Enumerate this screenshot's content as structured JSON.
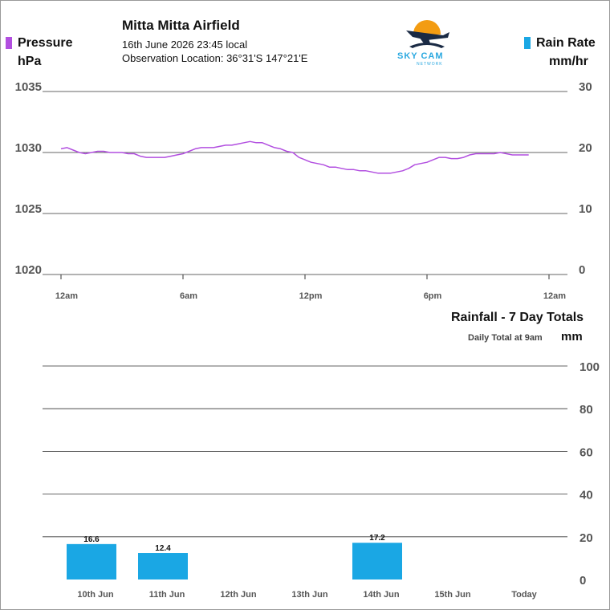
{
  "header": {
    "station": "Mitta Mitta Airfield",
    "datetime": "16th June 2026  23:45 local",
    "location": "Observation Location: 36°31'S 147°21'E"
  },
  "logo": {
    "text": "SKY CAM",
    "subtext": "NETWORK",
    "icon": "airplane-sunset-icon",
    "colors": {
      "sun": "#f39c12",
      "plane": "#1a2a44",
      "text": "#29a8e0"
    }
  },
  "legend": {
    "left": {
      "label": "Pressure",
      "unit": "hPa",
      "color": "#b24fe0"
    },
    "right": {
      "label": "Rain Rate",
      "unit": "mm/hr",
      "color": "#1aa7e4"
    }
  },
  "rainfall": {
    "title": "Rainfall - 7 Day Totals",
    "note": "Daily Total at 9am",
    "unit": "mm"
  },
  "chart_data": [
    {
      "type": "line",
      "title": "",
      "ylabel": "Pressure",
      "y_unit": "hPa",
      "y2label": "Rain Rate",
      "y2_unit": "mm/hr",
      "ylim": [
        1020,
        1035
      ],
      "yticks": [
        1035,
        1030,
        1025,
        1020
      ],
      "y2lim": [
        0,
        30
      ],
      "y2ticks": [
        30,
        20,
        10,
        0
      ],
      "xlim": [
        0,
        24
      ],
      "xticks": [
        {
          "x": 0,
          "label": "12am"
        },
        {
          "x": 6,
          "label": "6am"
        },
        {
          "x": 12,
          "label": "12pm"
        },
        {
          "x": 18,
          "label": "6pm"
        },
        {
          "x": 24,
          "label": "12am"
        }
      ],
      "grid": true,
      "series": [
        {
          "name": "Pressure",
          "color": "#b24fe0",
          "x": [
            0,
            0.3,
            0.6,
            0.9,
            1.2,
            1.5,
            1.8,
            2.1,
            2.4,
            2.7,
            3.0,
            3.3,
            3.6,
            3.9,
            4.2,
            4.5,
            4.8,
            5.1,
            5.4,
            5.7,
            6.0,
            6.3,
            6.6,
            6.9,
            7.2,
            7.5,
            7.8,
            8.1,
            8.4,
            8.7,
            9.0,
            9.3,
            9.6,
            9.9,
            10.2,
            10.5,
            10.8,
            11.1,
            11.4,
            11.7,
            12.0,
            12.3,
            12.6,
            12.9,
            13.2,
            13.5,
            13.8,
            14.1,
            14.4,
            14.7,
            15.0,
            15.3,
            15.6,
            15.9,
            16.2,
            16.5,
            16.8,
            17.1,
            17.4,
            17.7,
            18.0,
            18.3,
            18.6,
            18.9,
            19.2,
            19.5,
            19.8,
            20.1,
            20.4,
            20.7,
            21.0,
            21.3,
            21.6,
            21.9,
            22.2,
            22.5,
            22.8,
            23.0
          ],
          "values": [
            1030.3,
            1030.4,
            1030.2,
            1030.0,
            1029.9,
            1030.0,
            1030.1,
            1030.1,
            1030.0,
            1030.0,
            1030.0,
            1029.9,
            1029.9,
            1029.7,
            1029.6,
            1029.6,
            1029.6,
            1029.6,
            1029.7,
            1029.8,
            1029.9,
            1030.1,
            1030.3,
            1030.4,
            1030.4,
            1030.4,
            1030.5,
            1030.6,
            1030.6,
            1030.7,
            1030.8,
            1030.9,
            1030.8,
            1030.8,
            1030.6,
            1030.4,
            1030.3,
            1030.1,
            1030.0,
            1029.6,
            1029.4,
            1029.2,
            1029.1,
            1029.0,
            1028.8,
            1028.8,
            1028.7,
            1028.6,
            1028.6,
            1028.5,
            1028.5,
            1028.4,
            1028.3,
            1028.3,
            1028.3,
            1028.4,
            1028.5,
            1028.7,
            1029.0,
            1029.1,
            1029.2,
            1029.4,
            1029.6,
            1029.6,
            1029.5,
            1029.5,
            1029.6,
            1029.8,
            1029.9,
            1029.9,
            1029.9,
            1029.9,
            1030.0,
            1029.9,
            1029.8,
            1029.8,
            1029.8,
            1029.8
          ]
        },
        {
          "name": "Rain Rate",
          "color": "#1aa7e4",
          "x": [],
          "values": []
        }
      ]
    },
    {
      "type": "bar",
      "title": "Rainfall - 7 Day Totals",
      "ylabel": "",
      "y_unit": "mm",
      "ylim": [
        0,
        100
      ],
      "yticks": [
        100,
        80,
        60,
        40,
        20,
        0
      ],
      "grid": true,
      "categories": [
        "10th Jun",
        "11th Jun",
        "12th Jun",
        "13th Jun",
        "14th Jun",
        "15th Jun",
        "Today"
      ],
      "values": [
        16.6,
        12.4,
        null,
        null,
        17.2,
        null,
        null
      ],
      "labels": [
        "16.6",
        "12.4",
        "",
        "",
        "17.2",
        "",
        ""
      ],
      "color": "#1aa7e4"
    }
  ]
}
